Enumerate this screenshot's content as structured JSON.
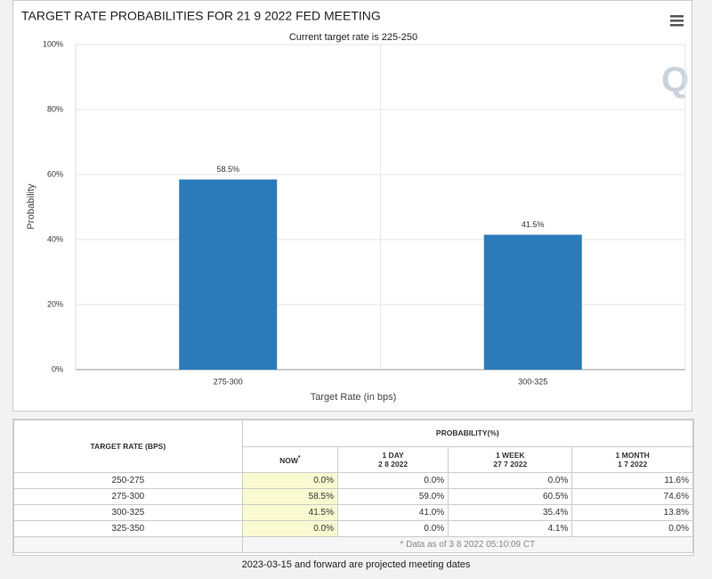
{
  "chart_data": {
    "type": "bar",
    "title": "TARGET RATE PROBABILITIES FOR 21 9 2022 FED MEETING",
    "subtitle": "Current target rate is 225-250",
    "x_label": "Target Rate (in bps)",
    "y_label": "Probability",
    "categories": [
      "275-300",
      "300-325"
    ],
    "values": [
      58.5,
      41.5
    ],
    "value_labels": [
      "58.5%",
      "41.5%"
    ],
    "color": "#2b7bba",
    "ylim": [
      0,
      100
    ],
    "yticks": [
      {
        "value": 0,
        "label": "0%"
      },
      {
        "value": 20,
        "label": "20%"
      },
      {
        "value": 40,
        "label": "40%"
      },
      {
        "value": 60,
        "label": "60%"
      },
      {
        "value": 80,
        "label": "80%"
      },
      {
        "value": 100,
        "label": "100%"
      }
    ],
    "grid": true
  },
  "table": {
    "header": {
      "target": "TARGET RATE (BPS)",
      "probability": "PROBABILITY(%)",
      "columns": [
        {
          "label": "NOW",
          "marker": "*"
        },
        {
          "label": "1 DAY",
          "date": "2 8 2022"
        },
        {
          "label": "1 WEEK",
          "date": "27 7 2022"
        },
        {
          "label": "1 MONTH",
          "date": "1 7 2022"
        }
      ]
    },
    "rows": [
      [
        "250-275",
        "0.0%",
        "0.0%",
        "0.0%",
        "11.6%"
      ],
      [
        "275-300",
        "58.5%",
        "59.0%",
        "60.5%",
        "74.6%"
      ],
      [
        "300-325",
        "41.5%",
        "41.0%",
        "35.4%",
        "13.8%"
      ],
      [
        "325-350",
        "0.0%",
        "0.0%",
        "4.1%",
        "0.0%"
      ]
    ],
    "note": "* Data as of 3 8 2022 05:10:09 CT"
  },
  "footer": "2023-03-15 and forward are projected meeting dates"
}
